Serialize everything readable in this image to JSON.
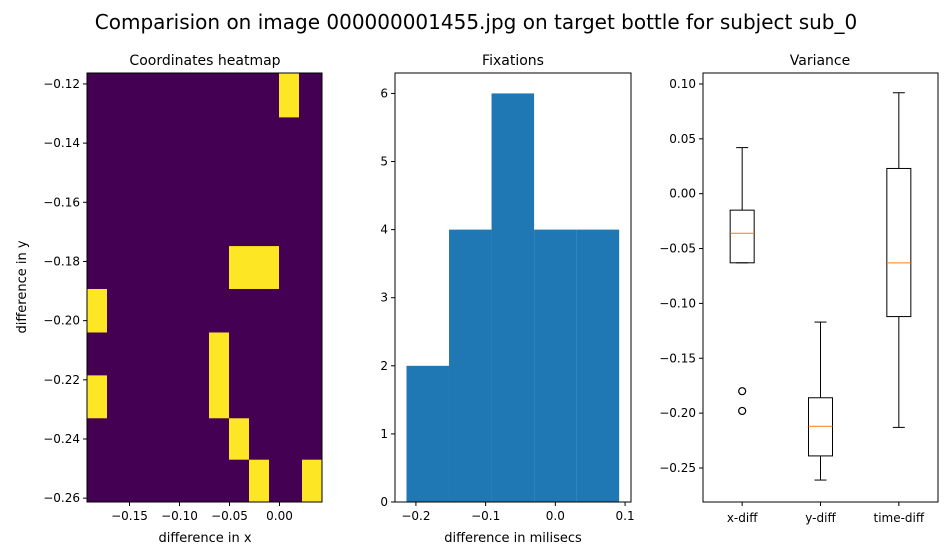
{
  "figure": {
    "suptitle": "Comparision on image 000000001455.jpg on target bottle for subject sub_0"
  },
  "colors": {
    "heat_low": "#440154",
    "heat_high": "#fde725",
    "bar": "#1f77b4",
    "median": "#ff7f0e",
    "axis": "#000000"
  },
  "chart_data": [
    {
      "type": "heatmap",
      "title": "Coordinates heatmap",
      "xlabel": "difference in x",
      "ylabel": "difference in y",
      "xlim": [
        -0.1925,
        0.0425
      ],
      "ylim": [
        -0.2613,
        -0.1163
      ],
      "xticks": [
        -0.15,
        -0.1,
        -0.05,
        0.0
      ],
      "xticklabels": [
        "−0.15",
        "−0.10",
        "−0.05",
        "0.00"
      ],
      "yticks": [
        -0.12,
        -0.14,
        -0.16,
        -0.18,
        -0.2,
        -0.22,
        -0.24,
        -0.26
      ],
      "yticklabels": [
        "−0.12",
        "−0.14",
        "−0.16",
        "−0.18",
        "−0.20",
        "−0.22",
        "−0.24",
        "−0.26"
      ],
      "grid": false,
      "cells": [
        {
          "x": [
            -0.0005,
            0.0195
          ],
          "y": [
            -0.1313,
            -0.1163
          ]
        },
        {
          "x": [
            -0.0505,
            -0.0005
          ],
          "y": [
            -0.1893,
            -0.1748
          ]
        },
        {
          "x": [
            -0.1925,
            -0.1725
          ],
          "y": [
            -0.204,
            -0.1893
          ]
        },
        {
          "x": [
            -0.0705,
            -0.0505
          ],
          "y": [
            -0.233,
            -0.204
          ]
        },
        {
          "x": [
            -0.1925,
            -0.1725
          ],
          "y": [
            -0.233,
            -0.2185
          ]
        },
        {
          "x": [
            -0.0505,
            -0.0305
          ],
          "y": [
            -0.247,
            -0.233
          ]
        },
        {
          "x": [
            -0.0305,
            -0.0105
          ],
          "y": [
            -0.2613,
            -0.247
          ]
        },
        {
          "x": [
            0.0225,
            0.0425
          ],
          "y": [
            -0.2613,
            -0.247
          ]
        }
      ]
    },
    {
      "type": "bar",
      "title": "Fixations",
      "xlabel": "difference in milisecs",
      "ylabel": "",
      "xlim": [
        -0.23,
        0.1085
      ],
      "ylim": [
        0,
        6.3
      ],
      "xticks": [
        -0.2,
        -0.1,
        0.0,
        0.1
      ],
      "xticklabels": [
        "−0.2",
        "−0.1",
        "0.0",
        "0.1"
      ],
      "yticks": [
        0,
        1,
        2,
        3,
        4,
        5,
        6
      ],
      "yticklabels": [
        "0",
        "1",
        "2",
        "3",
        "4",
        "5",
        "6"
      ],
      "grid": false,
      "bins": [
        {
          "x0": -0.2135,
          "x1": -0.1525,
          "value": 2
        },
        {
          "x0": -0.1525,
          "x1": -0.0915,
          "value": 4
        },
        {
          "x0": -0.0915,
          "x1": -0.0305,
          "value": 6
        },
        {
          "x0": -0.0305,
          "x1": 0.0305,
          "value": 4
        },
        {
          "x0": 0.0305,
          "x1": 0.0915,
          "value": 4
        }
      ]
    },
    {
      "type": "box",
      "title": "Variance",
      "xlabel": "",
      "ylabel": "",
      "ylim": [
        -0.281,
        0.11
      ],
      "yticks": [
        0.1,
        0.05,
        0.0,
        -0.05,
        -0.1,
        -0.15,
        -0.2,
        -0.25
      ],
      "yticklabels": [
        "0.10",
        "0.05",
        "0.00",
        "−0.05",
        "−0.10",
        "−0.15",
        "−0.20",
        "−0.25"
      ],
      "categories": [
        "x-diff",
        "y-diff",
        "time-diff"
      ],
      "grid": false,
      "boxes": [
        {
          "whislo": -0.063,
          "q1": -0.063,
          "med": -0.036,
          "q3": -0.015,
          "whishi": 0.042,
          "fliers": [
            -0.18,
            -0.198
          ]
        },
        {
          "whislo": -0.261,
          "q1": -0.239,
          "med": -0.212,
          "q3": -0.186,
          "whishi": -0.117,
          "fliers": []
        },
        {
          "whislo": -0.213,
          "q1": -0.112,
          "med": -0.063,
          "q3": 0.023,
          "whishi": 0.092,
          "fliers": []
        }
      ]
    }
  ]
}
